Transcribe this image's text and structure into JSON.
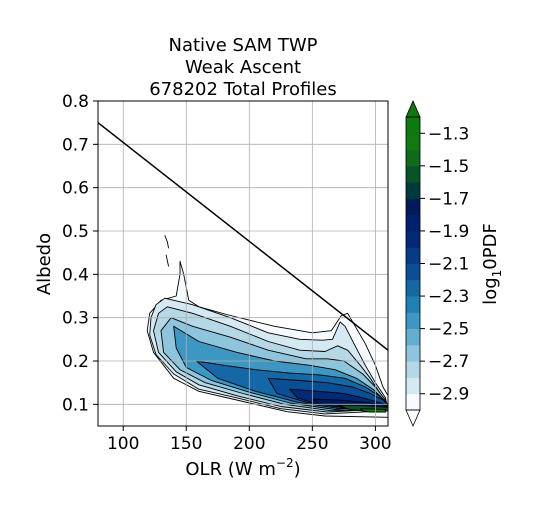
{
  "chart_data": {
    "type": "contour",
    "title": [
      "Native SAM TWP",
      "Weak Ascent",
      "678202 Total Profiles"
    ],
    "xlabel": "OLR (W m",
    "xlabel_sup": "−2",
    "xlabel_close": ")",
    "ylabel": "Albedo",
    "xlim": [
      80,
      310
    ],
    "ylim": [
      0.05,
      0.8
    ],
    "xticks": [
      100,
      150,
      200,
      250,
      300
    ],
    "yticks": [
      0.1,
      0.2,
      0.3,
      0.4,
      0.5,
      0.6,
      0.7,
      0.8
    ],
    "grid": true,
    "colorbar": {
      "label_base": "log",
      "label_sub": "1",
      "label_rest": "0PDF",
      "ticks": [
        "−1.3",
        "−1.5",
        "−1.7",
        "−1.9",
        "−2.1",
        "−2.3",
        "−2.5",
        "−2.7",
        "−2.9"
      ],
      "tick_values": [
        -1.3,
        -1.5,
        -1.7,
        -1.9,
        -2.1,
        -2.3,
        -2.5,
        -2.7,
        -2.9
      ],
      "range": [
        -3.0,
        -1.2
      ],
      "levels": 18,
      "colors": [
        "#f7fbff",
        "#d4e9f1",
        "#b4d8e6",
        "#8dc5dc",
        "#62afcf",
        "#3c97c2",
        "#1e80b4",
        "#1468a6",
        "#0a4e95",
        "#063c86",
        "#022a79",
        "#01206d",
        "#001a5c",
        "#003b3b",
        "#075527",
        "#0d6b1a",
        "#107a12",
        "#0c7a0c"
      ]
    },
    "reference_line": {
      "x": [
        80,
        310
      ],
      "y": [
        0.75,
        0.225
      ]
    },
    "contours": [
      {
        "level": -2.95,
        "points": [
          [
            145,
            0.43
          ],
          [
            148,
            0.4
          ],
          [
            152,
            0.34
          ],
          [
            160,
            0.325
          ],
          [
            185,
            0.305
          ],
          [
            220,
            0.28
          ],
          [
            250,
            0.265
          ],
          [
            265,
            0.27
          ],
          [
            273,
            0.305
          ],
          [
            278,
            0.31
          ],
          [
            284,
            0.28
          ],
          [
            292,
            0.24
          ],
          [
            300,
            0.19
          ],
          [
            306,
            0.14
          ],
          [
            310,
            0.12
          ],
          [
            310,
            0.07
          ],
          [
            260,
            0.073
          ],
          [
            230,
            0.083
          ],
          [
            190,
            0.11
          ],
          [
            160,
            0.13
          ],
          [
            140,
            0.16
          ],
          [
            124,
            0.22
          ],
          [
            119,
            0.27
          ],
          [
            121,
            0.31
          ],
          [
            130,
            0.34
          ],
          [
            142,
            0.35
          ],
          [
            145,
            0.4
          ]
        ]
      },
      {
        "level": -2.85,
        "points": [
          [
            133,
            0.345
          ],
          [
            155,
            0.33
          ],
          [
            185,
            0.3
          ],
          [
            215,
            0.265
          ],
          [
            240,
            0.25
          ],
          [
            258,
            0.248
          ],
          [
            266,
            0.25
          ],
          [
            272,
            0.29
          ],
          [
            276,
            0.28
          ],
          [
            283,
            0.24
          ],
          [
            292,
            0.19
          ],
          [
            300,
            0.15
          ],
          [
            308,
            0.115
          ],
          [
            310,
            0.085
          ],
          [
            260,
            0.078
          ],
          [
            225,
            0.09
          ],
          [
            190,
            0.115
          ],
          [
            160,
            0.135
          ],
          [
            140,
            0.17
          ],
          [
            126,
            0.215
          ],
          [
            121,
            0.26
          ],
          [
            122,
            0.3
          ],
          [
            126,
            0.33
          ]
        ]
      },
      {
        "level": -2.75,
        "points": [
          [
            135,
            0.325
          ],
          [
            155,
            0.31
          ],
          [
            185,
            0.28
          ],
          [
            215,
            0.245
          ],
          [
            240,
            0.225
          ],
          [
            260,
            0.222
          ],
          [
            270,
            0.235
          ],
          [
            278,
            0.225
          ],
          [
            288,
            0.19
          ],
          [
            296,
            0.16
          ],
          [
            305,
            0.12
          ],
          [
            310,
            0.09
          ],
          [
            262,
            0.082
          ],
          [
            225,
            0.095
          ],
          [
            190,
            0.12
          ],
          [
            160,
            0.145
          ],
          [
            142,
            0.175
          ],
          [
            128,
            0.22
          ],
          [
            124,
            0.27
          ],
          [
            128,
            0.31
          ]
        ]
      },
      {
        "level": -2.6,
        "points": [
          [
            138,
            0.3
          ],
          [
            155,
            0.28
          ],
          [
            185,
            0.255
          ],
          [
            215,
            0.225
          ],
          [
            245,
            0.205
          ],
          [
            262,
            0.205
          ],
          [
            275,
            0.2
          ],
          [
            290,
            0.17
          ],
          [
            300,
            0.14
          ],
          [
            308,
            0.11
          ],
          [
            310,
            0.09
          ],
          [
            265,
            0.085
          ],
          [
            228,
            0.1
          ],
          [
            195,
            0.125
          ],
          [
            165,
            0.15
          ],
          [
            145,
            0.18
          ],
          [
            132,
            0.22
          ],
          [
            130,
            0.27
          ]
        ]
      },
      {
        "level": -2.45,
        "points": [
          [
            140,
            0.28
          ],
          [
            160,
            0.245
          ],
          [
            190,
            0.22
          ],
          [
            220,
            0.2
          ],
          [
            248,
            0.19
          ],
          [
            268,
            0.18
          ],
          [
            285,
            0.16
          ],
          [
            298,
            0.135
          ],
          [
            307,
            0.11
          ],
          [
            310,
            0.095
          ],
          [
            268,
            0.088
          ],
          [
            232,
            0.103
          ],
          [
            200,
            0.128
          ],
          [
            170,
            0.155
          ],
          [
            150,
            0.185
          ],
          [
            142,
            0.23
          ]
        ]
      },
      {
        "level": -2.3,
        "points": [
          [
            158,
            0.2
          ],
          [
            180,
            0.19
          ],
          [
            205,
            0.18
          ],
          [
            232,
            0.172
          ],
          [
            256,
            0.168
          ],
          [
            276,
            0.16
          ],
          [
            292,
            0.14
          ],
          [
            303,
            0.12
          ],
          [
            310,
            0.1
          ],
          [
            272,
            0.09
          ],
          [
            238,
            0.105
          ],
          [
            205,
            0.13
          ],
          [
            175,
            0.16
          ]
        ]
      },
      {
        "level": -2.15,
        "points": [
          [
            215,
            0.16
          ],
          [
            240,
            0.155
          ],
          [
            262,
            0.15
          ],
          [
            282,
            0.14
          ],
          [
            296,
            0.125
          ],
          [
            306,
            0.11
          ],
          [
            310,
            0.1
          ],
          [
            275,
            0.092
          ],
          [
            245,
            0.105
          ],
          [
            222,
            0.125
          ]
        ]
      },
      {
        "level": -2.0,
        "points": [
          [
            232,
            0.135
          ],
          [
            255,
            0.13
          ],
          [
            275,
            0.125
          ],
          [
            290,
            0.115
          ],
          [
            302,
            0.105
          ],
          [
            310,
            0.098
          ],
          [
            282,
            0.092
          ],
          [
            255,
            0.1
          ],
          [
            238,
            0.115
          ]
        ]
      },
      {
        "level": -1.8,
        "points": [
          [
            250,
            0.112
          ],
          [
            270,
            0.11
          ],
          [
            290,
            0.105
          ],
          [
            305,
            0.1
          ],
          [
            310,
            0.095
          ],
          [
            290,
            0.09
          ],
          [
            268,
            0.095
          ],
          [
            255,
            0.102
          ]
        ]
      },
      {
        "level": -1.5,
        "points": [
          [
            270,
            0.098
          ],
          [
            288,
            0.097
          ],
          [
            302,
            0.095
          ],
          [
            310,
            0.093
          ],
          [
            310,
            0.085
          ],
          [
            296,
            0.083
          ],
          [
            280,
            0.088
          ]
        ]
      },
      {
        "level": -1.3,
        "points": [
          [
            288,
            0.09
          ],
          [
            300,
            0.089
          ],
          [
            308,
            0.088
          ],
          [
            308,
            0.082
          ],
          [
            296,
            0.082
          ],
          [
            290,
            0.085
          ]
        ]
      }
    ],
    "outliers": [
      {
        "level": -2.95,
        "points": [
          [
            133,
            0.49
          ],
          [
            135,
            0.475
          ],
          [
            136,
            0.46
          ],
          [
            135,
            0.475
          ]
        ]
      },
      {
        "level": -2.95,
        "points": [
          [
            134,
            0.445
          ],
          [
            135,
            0.432
          ],
          [
            136,
            0.418
          ],
          [
            135,
            0.432
          ]
        ]
      }
    ]
  }
}
